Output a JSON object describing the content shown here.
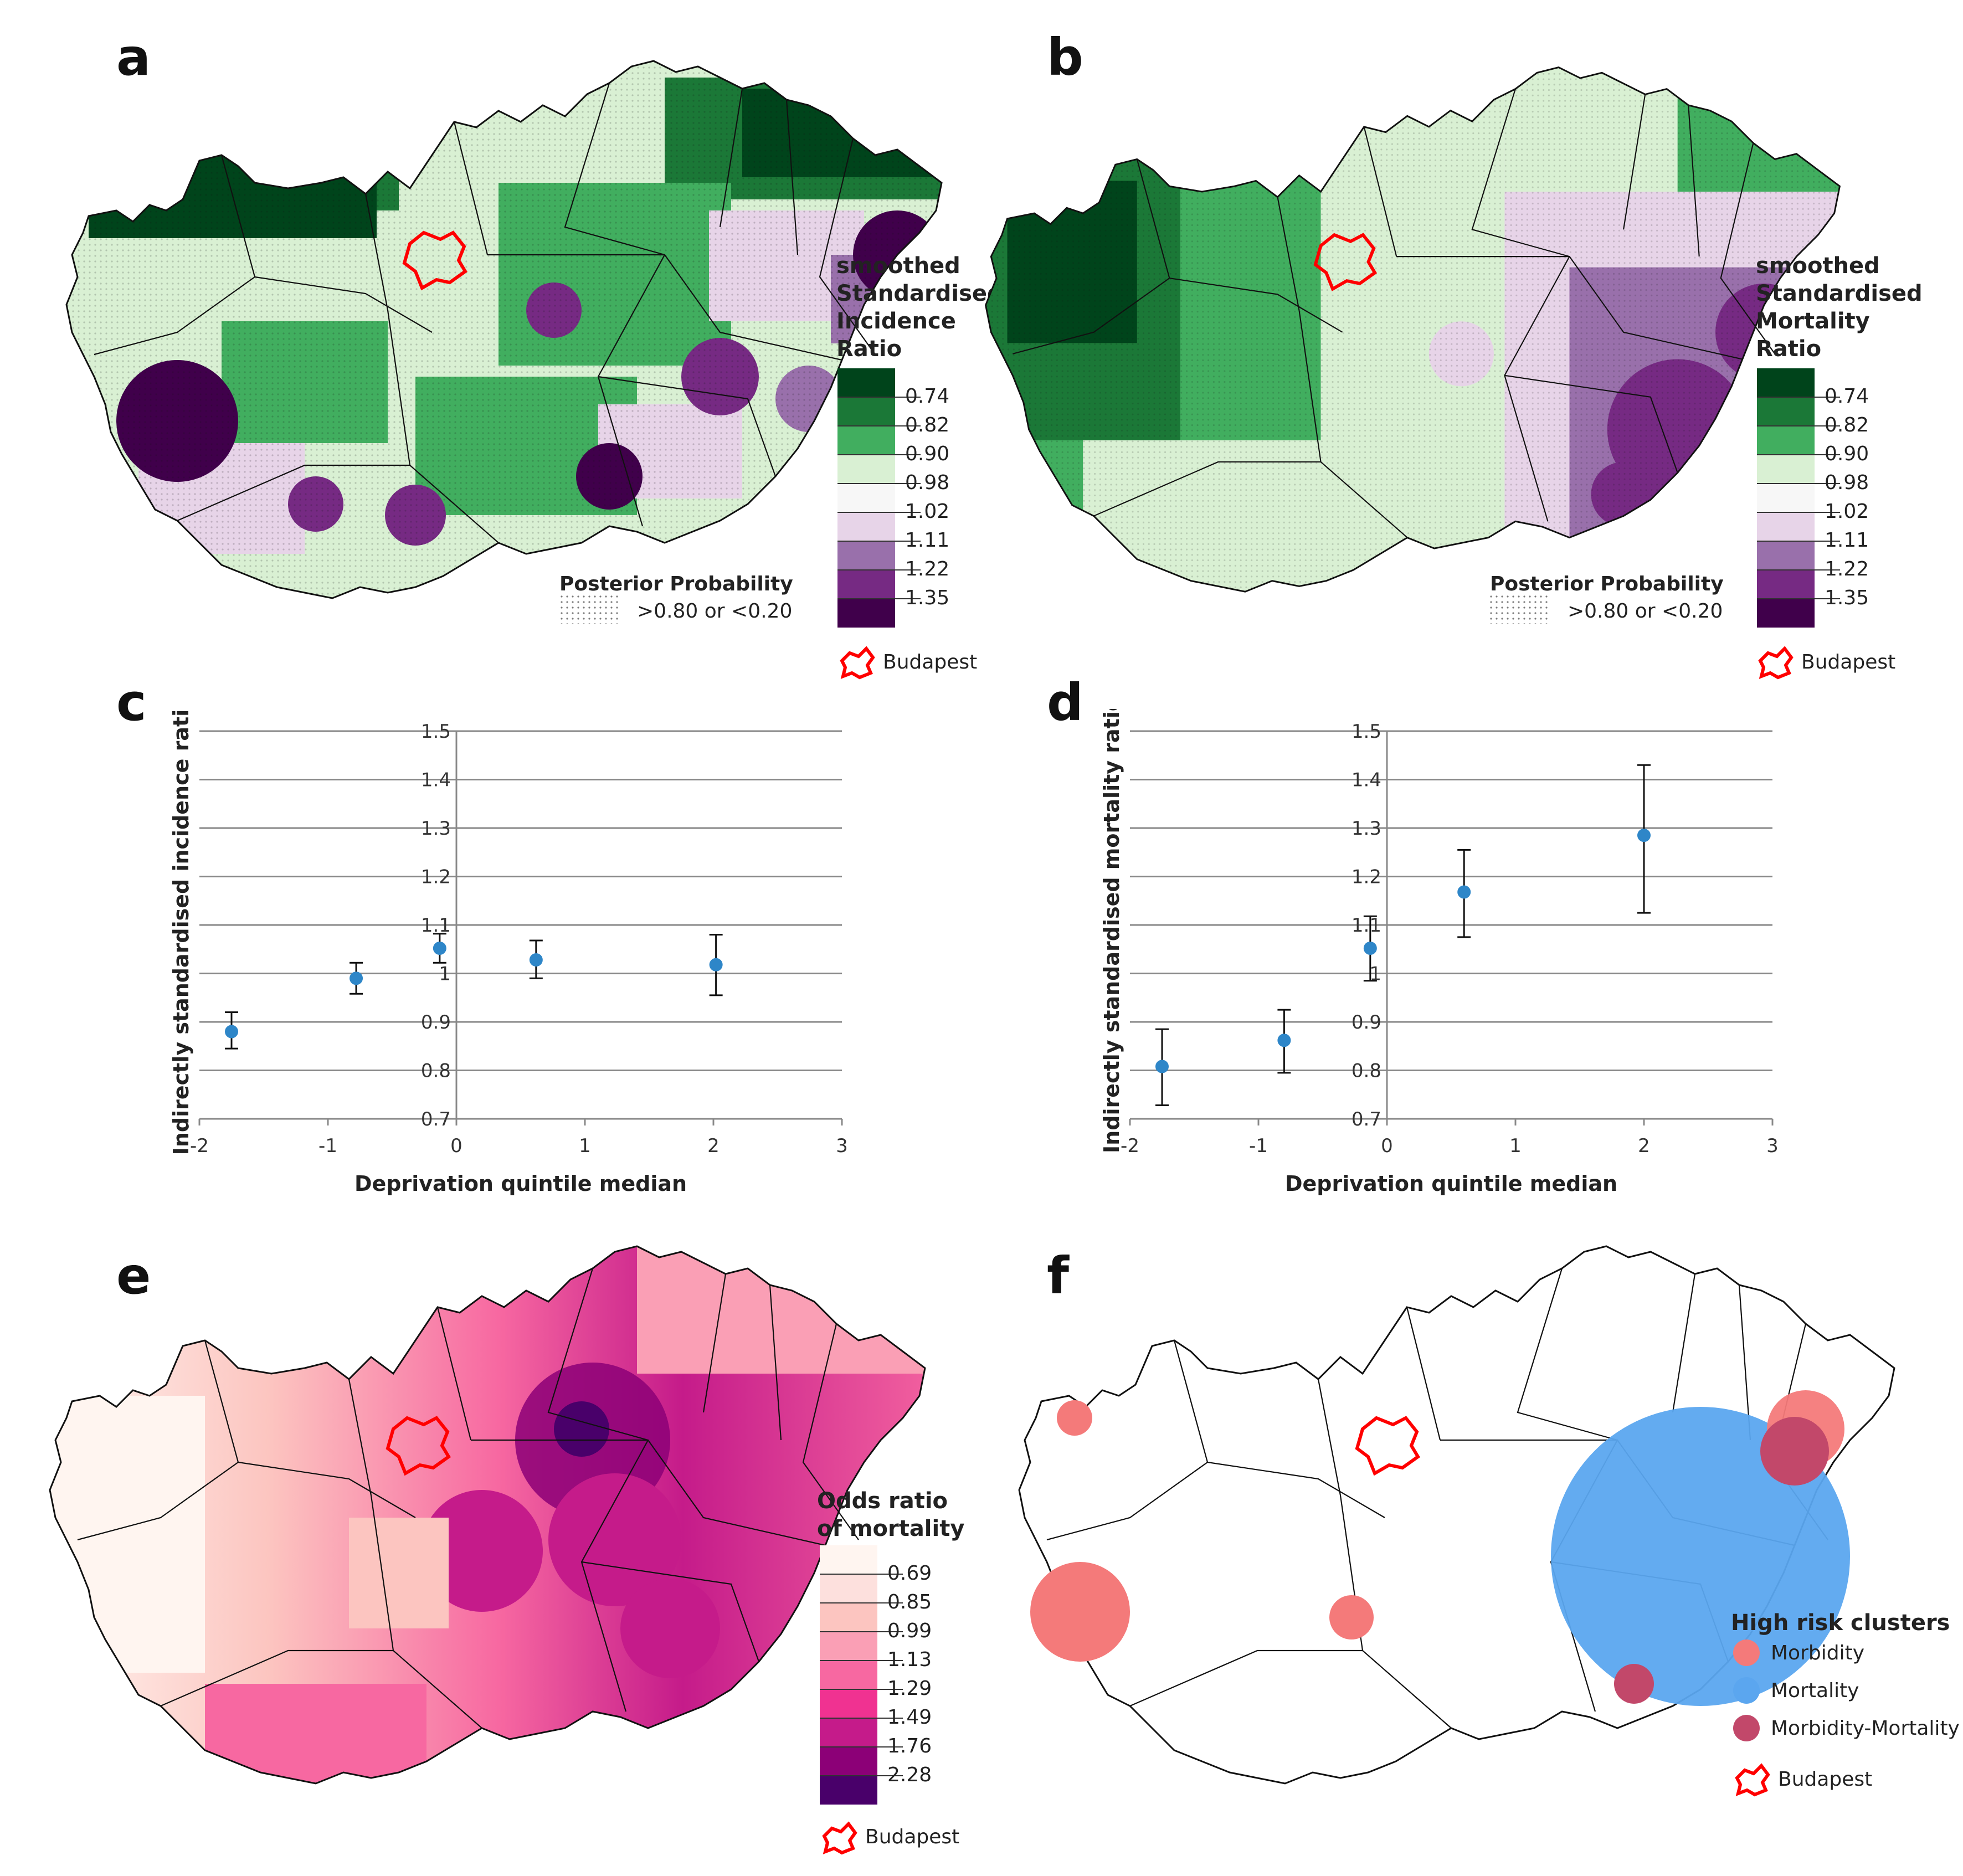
{
  "panels": {
    "a": {
      "label": "a",
      "legend_title": [
        "smoothed",
        "Standardised",
        "Incidence",
        "Ratio"
      ],
      "breaks": [
        "0.74",
        "0.82",
        "0.90",
        "0.98",
        "1.02",
        "1.11",
        "1.22",
        "1.35"
      ],
      "colors": [
        "#00441b",
        "#1b7837",
        "#41ae5f",
        "#d9f0d3",
        "#f7f7f7",
        "#e7d4e8",
        "#9970ab",
        "#762a83",
        "#40004b"
      ],
      "prob_title": "Posterior Probability",
      "prob_label": ">0.80 or <0.20",
      "budapest_label": "Budapest"
    },
    "b": {
      "label": "b",
      "legend_title": [
        "smoothed",
        "Standardised",
        "Mortality",
        "Ratio"
      ],
      "breaks": [
        "0.74",
        "0.82",
        "0.90",
        "0.98",
        "1.02",
        "1.11",
        "1.22",
        "1.35"
      ],
      "colors": [
        "#00441b",
        "#1b7837",
        "#41ae5f",
        "#d9f0d3",
        "#f7f7f7",
        "#e7d4e8",
        "#9970ab",
        "#762a83",
        "#40004b"
      ],
      "prob_title": "Posterior Probability",
      "prob_label": ">0.80 or <0.20",
      "budapest_label": "Budapest"
    },
    "c": {
      "label": "c"
    },
    "d": {
      "label": "d"
    },
    "e": {
      "label": "e",
      "legend_title": [
        "Odds ratio",
        "of mortality"
      ],
      "breaks": [
        "0.69",
        "0.85",
        "0.99",
        "1.13",
        "1.29",
        "1.49",
        "1.76",
        "2.28"
      ],
      "colors": [
        "#fff5f0",
        "#fde0dd",
        "#fcc5c0",
        "#fa9fb5",
        "#f768a1",
        "#f03291",
        "#c51b8a",
        "#8c0077",
        "#49006a"
      ],
      "budapest_label": "Budapest"
    },
    "f": {
      "label": "f",
      "legend_title": "High risk clusters",
      "items": [
        {
          "label": "Morbidity",
          "color": "#f47a7a"
        },
        {
          "label": "Mortality",
          "color": "#5ba6ef"
        },
        {
          "label": "Morbidity-Mortality",
          "color": "#c2486a"
        }
      ],
      "budapest_label": "Budapest"
    }
  },
  "chart_data": [
    {
      "type": "scatter",
      "xlabel": "Deprivation quintile median",
      "ylabel": "Indirectly standardised incidence ratio",
      "xlim": [
        -2,
        3
      ],
      "ylim": [
        0.7,
        1.5
      ],
      "xticks": [
        "-2",
        "-1",
        "0",
        "1",
        "2",
        "3"
      ],
      "yticks": [
        "0.7",
        "0.8",
        "0.9",
        "1",
        "1.1",
        "1.2",
        "1.3",
        "1.4",
        "1.5"
      ],
      "grid": true,
      "points": [
        {
          "x": -1.75,
          "y": 0.88,
          "lo": 0.845,
          "hi": 0.92
        },
        {
          "x": -0.78,
          "y": 0.99,
          "lo": 0.958,
          "hi": 1.022
        },
        {
          "x": -0.13,
          "y": 1.052,
          "lo": 1.022,
          "hi": 1.082
        },
        {
          "x": 0.62,
          "y": 1.028,
          "lo": 0.99,
          "hi": 1.068
        },
        {
          "x": 2.02,
          "y": 1.018,
          "lo": 0.955,
          "hi": 1.08
        }
      ]
    },
    {
      "type": "scatter",
      "xlabel": "Deprivation quintile median",
      "ylabel": "Indirectly standardised mortality ratio",
      "xlim": [
        -2,
        3
      ],
      "ylim": [
        0.7,
        1.5
      ],
      "xticks": [
        "-2",
        "-1",
        "0",
        "1",
        "2",
        "3"
      ],
      "yticks": [
        "0.7",
        "0.8",
        "0.9",
        "1",
        "1.1",
        "1.2",
        "1.3",
        "1.4",
        "1.5"
      ],
      "grid": true,
      "points": [
        {
          "x": -1.75,
          "y": 0.808,
          "lo": 0.728,
          "hi": 0.885
        },
        {
          "x": -0.8,
          "y": 0.862,
          "lo": 0.795,
          "hi": 0.925
        },
        {
          "x": -0.13,
          "y": 1.052,
          "lo": 0.985,
          "hi": 1.118
        },
        {
          "x": 0.6,
          "y": 1.168,
          "lo": 1.075,
          "hi": 1.255
        },
        {
          "x": 2.0,
          "y": 1.285,
          "lo": 1.125,
          "hi": 1.43
        }
      ]
    }
  ]
}
